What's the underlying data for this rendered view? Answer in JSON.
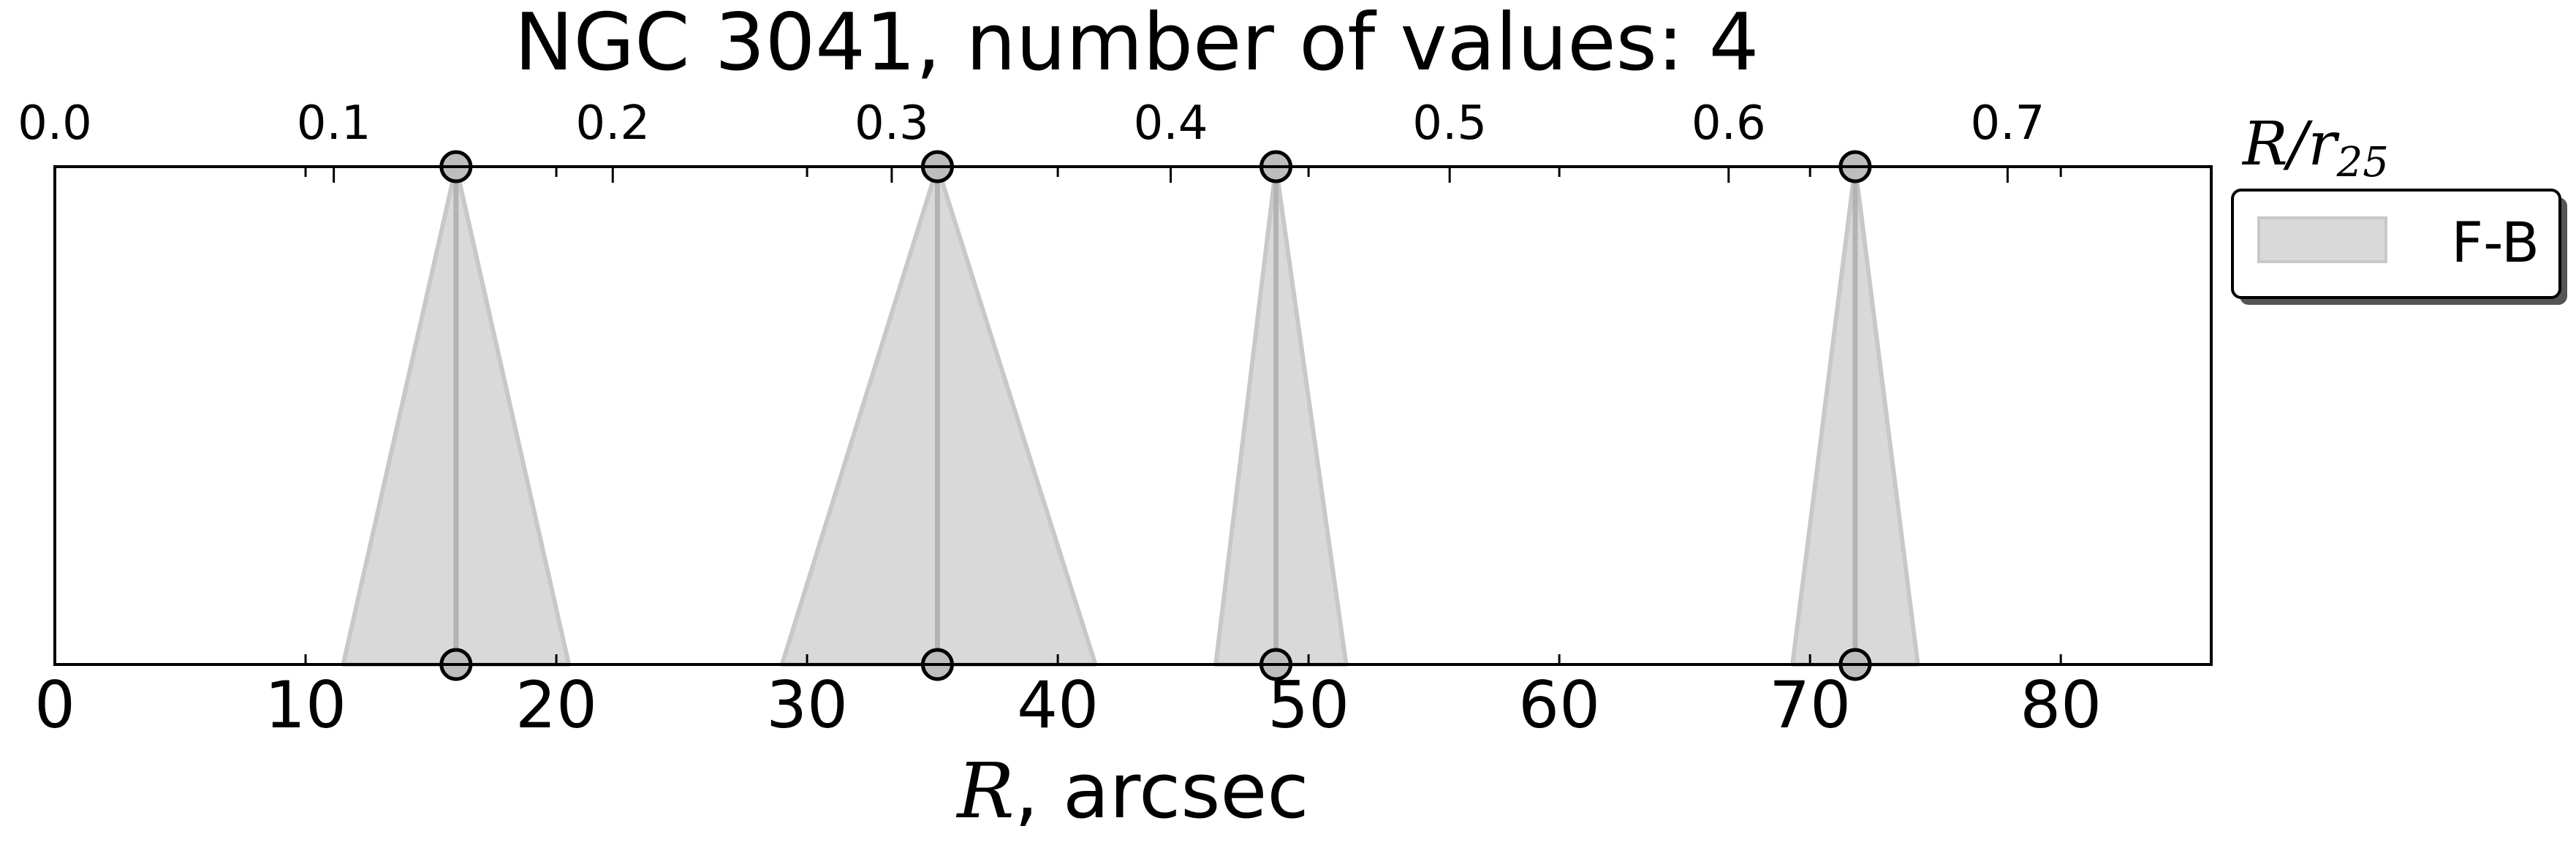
{
  "chart_data": {
    "type": "area",
    "title": "NGC 3041, number of values: 4",
    "xlabel_var": "R",
    "xlabel_rest": ", arcsec",
    "top_axis_label_var": "R/r",
    "top_axis_label_sub": "25",
    "xlim": [
      0,
      86
    ],
    "top_xlim": [
      0,
      0.773
    ],
    "xticks": [
      0,
      10,
      20,
      30,
      40,
      50,
      60,
      70,
      80
    ],
    "top_xticks": [
      "0.0",
      "0.1",
      "0.2",
      "0.3",
      "0.4",
      "0.5",
      "0.6",
      "0.7"
    ],
    "grid": false,
    "legend_position": "right",
    "series": [
      {
        "name": "F-B",
        "color": "#d9d9d9",
        "edge_color": "#c8c8c8",
        "line_color": "#b3b3b3",
        "marker_face": "#bdbdbd",
        "points": [
          {
            "center": 16.0,
            "low": 11.5,
            "high": 20.5
          },
          {
            "center": 35.2,
            "low": 29.0,
            "high": 41.5
          },
          {
            "center": 48.7,
            "low": 46.3,
            "high": 51.5
          },
          {
            "center": 71.8,
            "low": 69.3,
            "high": 74.3
          }
        ]
      }
    ]
  }
}
